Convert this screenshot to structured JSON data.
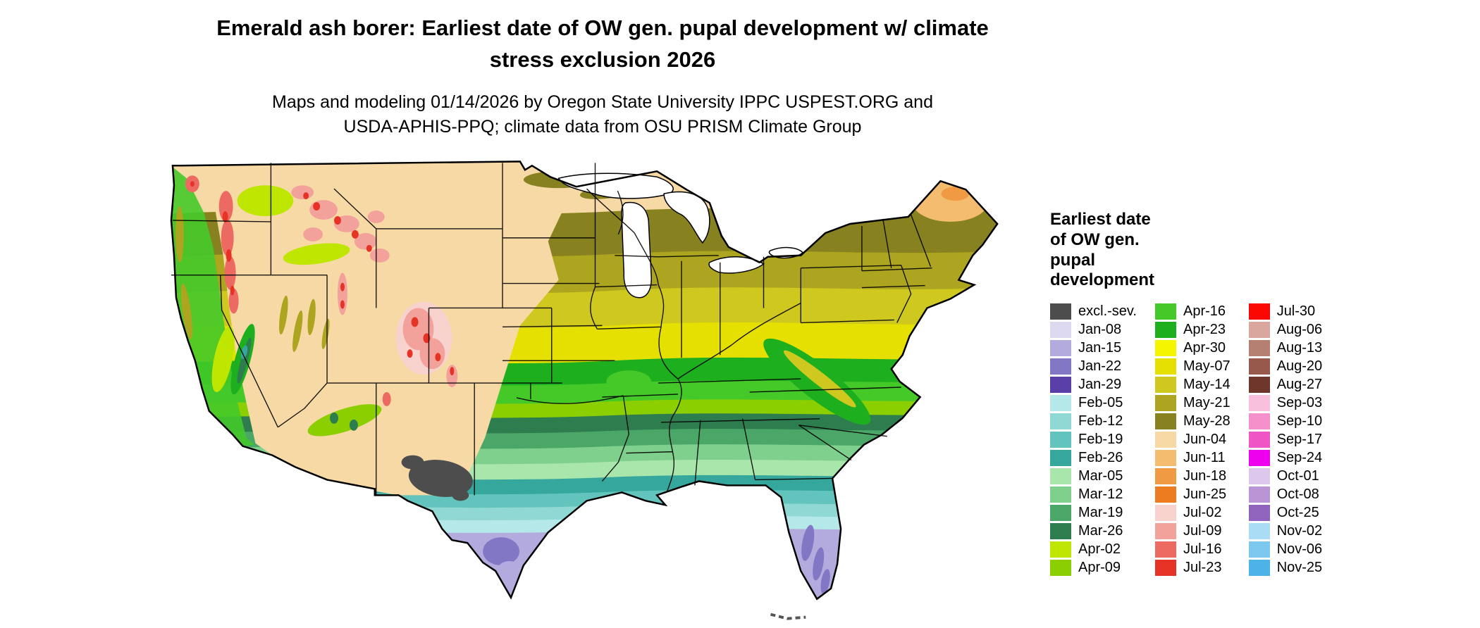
{
  "header": {
    "title": "Emerald ash borer: Earliest date of OW gen. pupal development w/ climate stress exclusion 2026",
    "subtitle": "Maps and modeling 01/14/2026 by Oregon State University IPPC USPEST.ORG and USDA-APHIS-PPQ; climate data from OSU PRISM Climate Group"
  },
  "legend": {
    "title": "Earliest date of OW gen. pupal development",
    "columns": [
      [
        {
          "label": "excl.-sev.",
          "key": "exclsev"
        },
        {
          "label": "Jan-08",
          "key": "jan08"
        },
        {
          "label": "Jan-15",
          "key": "jan15"
        },
        {
          "label": "Jan-22",
          "key": "jan22"
        },
        {
          "label": "Jan-29",
          "key": "jan29"
        },
        {
          "label": "Feb-05",
          "key": "feb05"
        },
        {
          "label": "Feb-12",
          "key": "feb12"
        },
        {
          "label": "Feb-19",
          "key": "feb19"
        },
        {
          "label": "Feb-26",
          "key": "feb26"
        },
        {
          "label": "Mar-05",
          "key": "mar05"
        },
        {
          "label": "Mar-12",
          "key": "mar12"
        },
        {
          "label": "Mar-19",
          "key": "mar19"
        },
        {
          "label": "Mar-26",
          "key": "mar26"
        },
        {
          "label": "Apr-02",
          "key": "apr02"
        },
        {
          "label": "Apr-09",
          "key": "apr09"
        }
      ],
      [
        {
          "label": "Apr-16",
          "key": "apr16"
        },
        {
          "label": "Apr-23",
          "key": "apr23"
        },
        {
          "label": "Apr-30",
          "key": "apr30"
        },
        {
          "label": "May-07",
          "key": "may07"
        },
        {
          "label": "May-14",
          "key": "may14"
        },
        {
          "label": "May-21",
          "key": "may21"
        },
        {
          "label": "May-28",
          "key": "may28"
        },
        {
          "label": "Jun-04",
          "key": "jun04"
        },
        {
          "label": "Jun-11",
          "key": "jun11"
        },
        {
          "label": "Jun-18",
          "key": "jun18"
        },
        {
          "label": "Jun-25",
          "key": "jun25"
        },
        {
          "label": "Jul-02",
          "key": "jul02"
        },
        {
          "label": "Jul-09",
          "key": "jul09"
        },
        {
          "label": "Jul-16",
          "key": "jul16"
        },
        {
          "label": "Jul-23",
          "key": "jul23"
        }
      ],
      [
        {
          "label": "Jul-30",
          "key": "jul30"
        },
        {
          "label": "Aug-06",
          "key": "aug06"
        },
        {
          "label": "Aug-13",
          "key": "aug13"
        },
        {
          "label": "Aug-20",
          "key": "aug20"
        },
        {
          "label": "Aug-27",
          "key": "aug27"
        },
        {
          "label": "Sep-03",
          "key": "sep03"
        },
        {
          "label": "Sep-10",
          "key": "sep10"
        },
        {
          "label": "Sep-17",
          "key": "sep17"
        },
        {
          "label": "Sep-24",
          "key": "sep24"
        },
        {
          "label": "Oct-01",
          "key": "oct01"
        },
        {
          "label": "Oct-08",
          "key": "oct08"
        },
        {
          "label": "Oct-25",
          "key": "oct25"
        },
        {
          "label": "Nov-02",
          "key": "nov02"
        },
        {
          "label": "Nov-06",
          "key": "nov06"
        },
        {
          "label": "Nov-25",
          "key": "nov25"
        }
      ]
    ]
  },
  "palette": {
    "exclsev": "#4d4d4d",
    "jan08": "#dcd9f0",
    "jan15": "#b3abdd",
    "jan22": "#8277c4",
    "jan29": "#5b3fa8",
    "feb05": "#b5e9e9",
    "feb12": "#8fd8d4",
    "feb19": "#62c4bc",
    "feb26": "#35a79c",
    "mar05": "#a9e6ab",
    "mar12": "#7fcf8d",
    "mar19": "#4ba768",
    "mar26": "#2e7d4f",
    "apr02": "#bfe600",
    "apr09": "#8ccf00",
    "apr16": "#44c929",
    "apr23": "#1daf1d",
    "apr30": "#f5f500",
    "may07": "#e6e000",
    "may14": "#cfc81e",
    "may21": "#ada41f",
    "may28": "#87811f",
    "jun04": "#f7d9a5",
    "jun11": "#f3bc6e",
    "jun18": "#f09b44",
    "jun25": "#ec7c1f",
    "jul02": "#f8d3ce",
    "jul09": "#f3a29b",
    "jul16": "#ec6a61",
    "jul23": "#e63326",
    "jul30": "#fb0802",
    "aug06": "#d9a79d",
    "aug13": "#b57f72",
    "aug20": "#96594c",
    "aug27": "#6e362b",
    "sep03": "#f9c0dd",
    "sep10": "#f590cb",
    "sep17": "#f055c5",
    "sep24": "#ee00ee",
    "oct01": "#ddc7ec",
    "oct08": "#b995d6",
    "oct25": "#9064bd",
    "nov02": "#aadcf5",
    "nov06": "#7cc8ee",
    "nov25": "#4cb2e8"
  }
}
